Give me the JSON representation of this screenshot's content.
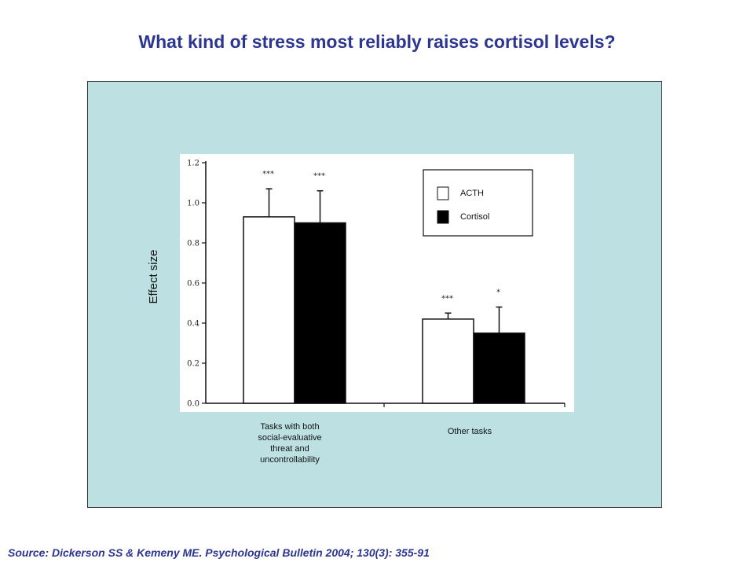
{
  "title": "What kind of stress most reliably raises cortisol levels?",
  "source": "Source: Dickerson SS & Kemeny ME. Psychological Bulletin 2004; 130(3): 355-91",
  "colors": {
    "title": "#2d3592",
    "panel": "#bde1e3",
    "acth": "#ffffff",
    "cortisol": "#000000"
  },
  "chart_data": {
    "type": "bar",
    "ylabel": "Effect size",
    "xlabel": "",
    "ylim": [
      0,
      1.2
    ],
    "yticks": [
      "0.0",
      "0.2",
      "0.4",
      "0.6",
      "0.8",
      "1.0",
      "1.2"
    ],
    "categories": [
      [
        "Tasks with both",
        "social-evaluative",
        "threat and",
        "uncontrollability"
      ],
      [
        "Other tasks"
      ]
    ],
    "series": [
      {
        "name": "ACTH",
        "values": [
          0.93,
          0.42
        ],
        "error_upper": [
          1.07,
          0.45
        ],
        "significance": [
          "***",
          "***"
        ],
        "color": "#ffffff"
      },
      {
        "name": "Cortisol",
        "values": [
          0.9,
          0.35
        ],
        "error_upper": [
          1.06,
          0.48
        ],
        "significance": [
          "***",
          "*"
        ],
        "color": "#000000"
      }
    ],
    "legend_position": "top-right",
    "grid": false
  }
}
